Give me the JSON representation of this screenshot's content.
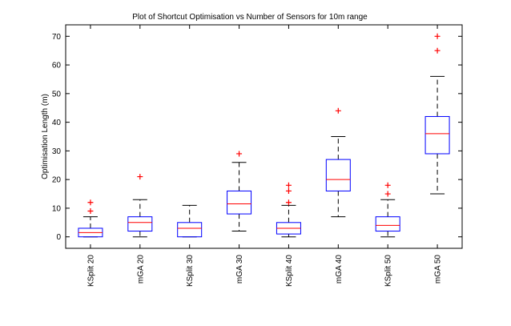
{
  "chart_data": {
    "type": "box",
    "title": "Plot of Shortcut Optimisation vs Number of Sensors for 10m range",
    "xlabel": "",
    "ylabel": "Optimisation Length (m)",
    "ylim": [
      -4,
      74
    ],
    "yticks": [
      0,
      10,
      20,
      30,
      40,
      50,
      60,
      70
    ],
    "grid": false,
    "colors": {
      "box": "#0000ff",
      "median": "#ff0000",
      "whisker": "#000000",
      "outlier": "#ff0000"
    },
    "categories": [
      "KSplit 20",
      "mGA 20",
      "KSplit 30",
      "mGA 30",
      "KSplit 40",
      "mGA 40",
      "KSplit 50",
      "mGA 50"
    ],
    "boxes": [
      {
        "category": "KSplit 20",
        "min": 0,
        "q1": 0,
        "median": 1.5,
        "q3": 3,
        "max": 7,
        "outliers": [
          9,
          12
        ]
      },
      {
        "category": "mGA 20",
        "min": 0,
        "q1": 2,
        "median": 5,
        "q3": 7,
        "max": 13,
        "outliers": [
          21
        ]
      },
      {
        "category": "KSplit 30",
        "min": 0,
        "q1": 0,
        "median": 3,
        "q3": 5,
        "max": 11,
        "outliers": []
      },
      {
        "category": "mGA 30",
        "min": 2,
        "q1": 8,
        "median": 11.5,
        "q3": 16,
        "max": 26,
        "outliers": [
          29
        ]
      },
      {
        "category": "KSplit 40",
        "min": 0,
        "q1": 1,
        "median": 3,
        "q3": 5,
        "max": 11,
        "outliers": [
          12,
          16,
          18
        ]
      },
      {
        "category": "mGA 40",
        "min": 7,
        "q1": 16,
        "median": 20,
        "q3": 27,
        "max": 35,
        "outliers": [
          44
        ]
      },
      {
        "category": "KSplit 50",
        "min": 0,
        "q1": 2,
        "median": 4,
        "q3": 7,
        "max": 13,
        "outliers": [
          15,
          18
        ]
      },
      {
        "category": "mGA 50",
        "min": 15,
        "q1": 29,
        "median": 36,
        "q3": 42,
        "max": 56,
        "outliers": [
          65,
          70
        ]
      }
    ]
  }
}
